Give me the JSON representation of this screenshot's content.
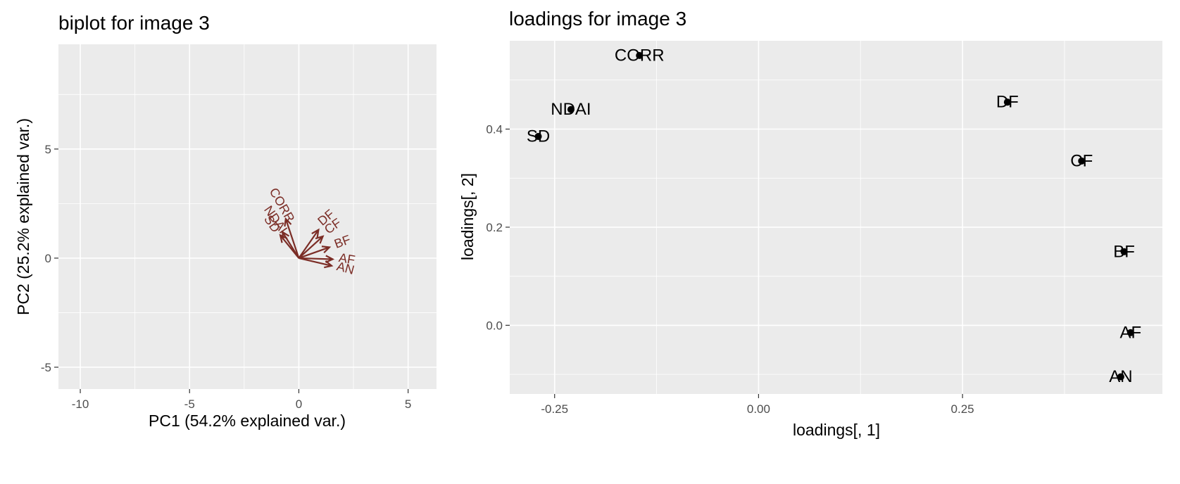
{
  "chart_data": [
    {
      "type": "scatter",
      "title": "biplot for image 3",
      "xlabel": "PC1 (54.2% explained var.)",
      "ylabel": "PC2 (25.2% explained var.)",
      "xlim": [
        -11,
        6.3
      ],
      "ylim": [
        -6,
        9.8
      ],
      "xticks": [
        -10,
        -5,
        0,
        5
      ],
      "yticks": [
        -5,
        0,
        5
      ],
      "xtick_labels": [
        "-10",
        "-5",
        "0",
        "5"
      ],
      "ytick_labels": [
        "-5",
        "0",
        "5"
      ],
      "grid": true,
      "arrow_color": "#7b2d26",
      "vectors": [
        {
          "label": "CORR",
          "x": -0.6,
          "y": 1.8,
          "label_angle": 60
        },
        {
          "label": "NDAI",
          "x": -0.75,
          "y": 1.2,
          "label_angle": 55
        },
        {
          "label": "SD",
          "x": -0.85,
          "y": 1.05,
          "label_angle": 55
        },
        {
          "label": "DF",
          "x": 0.9,
          "y": 1.3,
          "label_angle": -40
        },
        {
          "label": "CF",
          "x": 1.1,
          "y": 1.0,
          "label_angle": -35
        },
        {
          "label": "BF",
          "x": 1.4,
          "y": 0.5,
          "label_angle": -20
        },
        {
          "label": "AF",
          "x": 1.55,
          "y": -0.05,
          "label_angle": 10
        },
        {
          "label": "AN",
          "x": 1.5,
          "y": -0.35,
          "label_angle": 15
        }
      ]
    },
    {
      "type": "scatter",
      "title": "loadings for image 3",
      "xlabel": "loadings[, 1]",
      "ylabel": "loadings[, 2]",
      "xlim": [
        -0.305,
        0.495
      ],
      "ylim": [
        -0.14,
        0.58
      ],
      "xticks": [
        -0.25,
        0.0,
        0.25
      ],
      "yticks": [
        0.0,
        0.2,
        0.4
      ],
      "xtick_labels": [
        "-0.25",
        "0.00",
        "0.25"
      ],
      "ytick_labels": [
        "0.0",
        "0.2",
        "0.4"
      ],
      "grid": true,
      "point_color": "#000000",
      "points": [
        {
          "label": "CORR",
          "x": -0.146,
          "y": 0.55
        },
        {
          "label": "NDAI",
          "x": -0.23,
          "y": 0.44
        },
        {
          "label": "SD",
          "x": -0.27,
          "y": 0.385
        },
        {
          "label": "DF",
          "x": 0.305,
          "y": 0.455
        },
        {
          "label": "CF",
          "x": 0.396,
          "y": 0.335
        },
        {
          "label": "BF",
          "x": 0.448,
          "y": 0.15
        },
        {
          "label": "AF",
          "x": 0.456,
          "y": -0.015
        },
        {
          "label": "AN",
          "x": 0.444,
          "y": -0.105
        }
      ]
    }
  ]
}
